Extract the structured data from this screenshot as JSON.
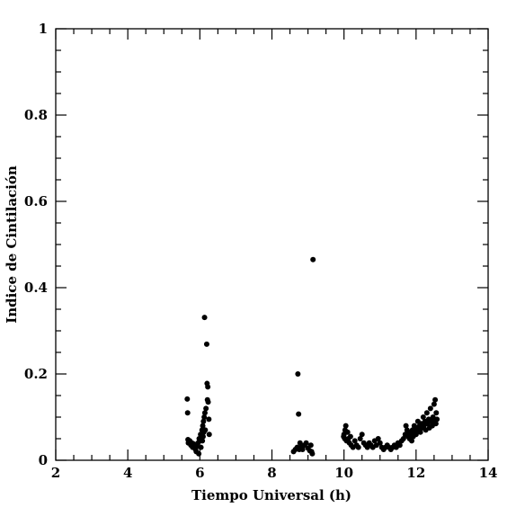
{
  "chart_data": {
    "type": "scatter",
    "xlabel": "Tiempo Universal (h)",
    "ylabel": "Indice de Cintilación",
    "xlim": [
      2,
      14
    ],
    "ylim": [
      0,
      1
    ],
    "xticks": [
      2,
      4,
      6,
      8,
      10,
      12,
      14
    ],
    "xtick_labels": [
      "2",
      "4",
      "6",
      "8",
      "10",
      "12",
      "14"
    ],
    "yticks": [
      0,
      0.2,
      0.4,
      0.6,
      0.8,
      1
    ],
    "ytick_labels": [
      "0",
      "0.2",
      "0.4",
      "0.6",
      "0.8",
      "1"
    ],
    "grid": false,
    "marker_color": "#000000",
    "series": [
      {
        "points": [
          [
            5.65,
            0.142
          ],
          [
            5.66,
            0.11
          ],
          [
            5.67,
            0.048
          ],
          [
            5.68,
            0.04
          ],
          [
            5.72,
            0.045
          ],
          [
            5.75,
            0.035
          ],
          [
            5.78,
            0.04
          ],
          [
            5.8,
            0.03
          ],
          [
            5.82,
            0.038
          ],
          [
            5.85,
            0.03
          ],
          [
            5.88,
            0.025
          ],
          [
            5.9,
            0.02
          ],
          [
            5.92,
            0.032
          ],
          [
            5.95,
            0.04
          ],
          [
            5.97,
            0.015
          ],
          [
            5.98,
            0.05
          ],
          [
            6.0,
            0.045
          ],
          [
            6.02,
            0.06
          ],
          [
            6.03,
            0.03
          ],
          [
            6.05,
            0.055
          ],
          [
            6.06,
            0.07
          ],
          [
            6.07,
            0.045
          ],
          [
            6.08,
            0.08
          ],
          [
            6.09,
            0.055
          ],
          [
            6.1,
            0.09
          ],
          [
            6.11,
            0.065
          ],
          [
            6.12,
            0.1
          ],
          [
            6.13,
            0.331
          ],
          [
            6.14,
            0.11
          ],
          [
            6.15,
            0.07
          ],
          [
            6.17,
            0.12
          ],
          [
            6.19,
            0.269
          ],
          [
            6.2,
            0.178
          ],
          [
            6.21,
            0.14
          ],
          [
            6.22,
            0.17
          ],
          [
            6.23,
            0.135
          ],
          [
            6.25,
            0.095
          ],
          [
            6.26,
            0.06
          ],
          [
            8.6,
            0.02
          ],
          [
            8.65,
            0.025
          ],
          [
            8.7,
            0.03
          ],
          [
            8.72,
            0.2
          ],
          [
            8.74,
            0.107
          ],
          [
            8.76,
            0.025
          ],
          [
            8.78,
            0.04
          ],
          [
            8.8,
            0.03
          ],
          [
            8.85,
            0.025
          ],
          [
            8.9,
            0.035
          ],
          [
            8.95,
            0.04
          ],
          [
            9.0,
            0.028
          ],
          [
            9.05,
            0.022
          ],
          [
            9.08,
            0.035
          ],
          [
            9.1,
            0.02
          ],
          [
            9.12,
            0.015
          ],
          [
            9.14,
            0.465
          ],
          [
            9.99,
            0.055
          ],
          [
            10.0,
            0.06
          ],
          [
            10.02,
            0.05
          ],
          [
            10.03,
            0.07
          ],
          [
            10.05,
            0.08
          ],
          [
            10.07,
            0.045
          ],
          [
            10.1,
            0.065
          ],
          [
            10.12,
            0.05
          ],
          [
            10.15,
            0.04
          ],
          [
            10.18,
            0.055
          ],
          [
            10.2,
            0.035
          ],
          [
            10.25,
            0.03
          ],
          [
            10.3,
            0.045
          ],
          [
            10.35,
            0.035
          ],
          [
            10.4,
            0.03
          ],
          [
            10.45,
            0.05
          ],
          [
            10.5,
            0.06
          ],
          [
            10.55,
            0.04
          ],
          [
            10.6,
            0.035
          ],
          [
            10.65,
            0.03
          ],
          [
            10.7,
            0.04
          ],
          [
            10.75,
            0.035
          ],
          [
            10.8,
            0.03
          ],
          [
            10.85,
            0.045
          ],
          [
            10.9,
            0.035
          ],
          [
            10.95,
            0.05
          ],
          [
            11.0,
            0.04
          ],
          [
            11.05,
            0.03
          ],
          [
            11.1,
            0.025
          ],
          [
            11.15,
            0.03
          ],
          [
            11.2,
            0.035
          ],
          [
            11.25,
            0.03
          ],
          [
            11.3,
            0.025
          ],
          [
            11.35,
            0.03
          ],
          [
            11.4,
            0.035
          ],
          [
            11.45,
            0.03
          ],
          [
            11.5,
            0.04
          ],
          [
            11.55,
            0.035
          ],
          [
            11.6,
            0.045
          ],
          [
            11.65,
            0.05
          ],
          [
            11.7,
            0.06
          ],
          [
            11.72,
            0.08
          ],
          [
            11.75,
            0.07
          ],
          [
            11.78,
            0.055
          ],
          [
            11.8,
            0.065
          ],
          [
            11.82,
            0.05
          ],
          [
            11.85,
            0.06
          ],
          [
            11.88,
            0.045
          ],
          [
            11.9,
            0.07
          ],
          [
            11.92,
            0.055
          ],
          [
            11.95,
            0.08
          ],
          [
            11.97,
            0.065
          ],
          [
            12.0,
            0.06
          ],
          [
            12.02,
            0.075
          ],
          [
            12.05,
            0.09
          ],
          [
            12.07,
            0.07
          ],
          [
            12.1,
            0.08
          ],
          [
            12.12,
            0.065
          ],
          [
            12.15,
            0.085
          ],
          [
            12.17,
            0.075
          ],
          [
            12.2,
            0.1
          ],
          [
            12.22,
            0.08
          ],
          [
            12.25,
            0.09
          ],
          [
            12.27,
            0.07
          ],
          [
            12.3,
            0.11
          ],
          [
            12.32,
            0.085
          ],
          [
            12.35,
            0.095
          ],
          [
            12.37,
            0.075
          ],
          [
            12.4,
            0.12
          ],
          [
            12.42,
            0.09
          ],
          [
            12.45,
            0.08
          ],
          [
            12.47,
            0.1
          ],
          [
            12.5,
            0.13
          ],
          [
            12.52,
            0.09
          ],
          [
            12.53,
            0.14
          ],
          [
            12.55,
            0.085
          ],
          [
            12.56,
            0.11
          ],
          [
            12.58,
            0.095
          ]
        ]
      }
    ]
  }
}
